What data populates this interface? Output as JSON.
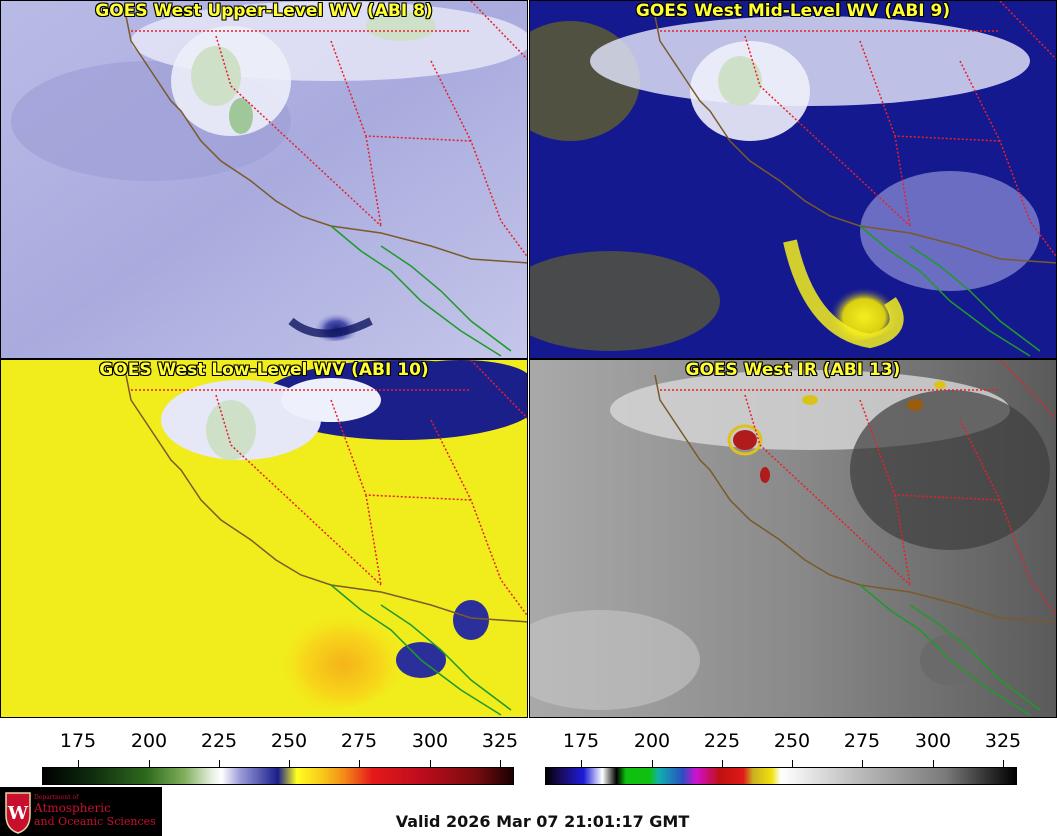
{
  "panels": [
    {
      "title": "GOES West Upper-Level WV (ABI 8)",
      "palette": "wv-upper"
    },
    {
      "title": "GOES West Mid-Level WV (ABI 9)",
      "palette": "wv-mid"
    },
    {
      "title": "GOES West Low-Level WV (ABI 10)",
      "palette": "wv-low"
    },
    {
      "title": "GOES West IR (ABI 13)",
      "palette": "ir"
    }
  ],
  "wv_scale": {
    "ticks": [
      "175",
      "200",
      "225",
      "250",
      "275",
      "300",
      "325"
    ]
  },
  "ir_scale": {
    "ticks": [
      "175",
      "200",
      "225",
      "250",
      "275",
      "300",
      "325"
    ]
  },
  "logo": {
    "line1": "Department of",
    "line2": "Atmospheric",
    "line3": "and Oceanic Sciences",
    "seal_letter": "W"
  },
  "valid_time": "Valid 2026 Mar 07 21:01:17 GMT",
  "colors": {
    "state_borders": "#e8202a",
    "coastline_us": "#7a5a2a",
    "coastline_mx": "#1f9a2a",
    "title_text": "#ffff33"
  }
}
